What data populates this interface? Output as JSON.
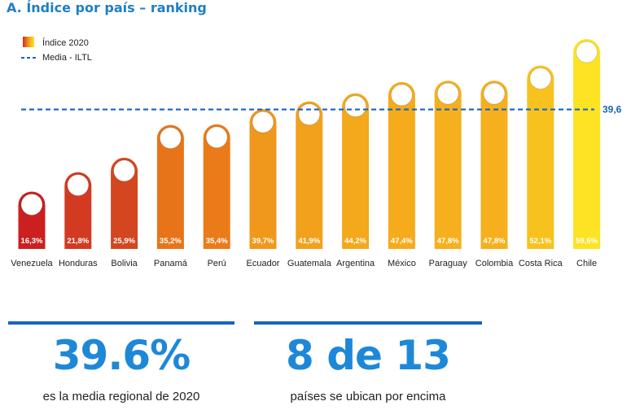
{
  "title": "A. Índice por país – ranking",
  "chart_data": {
    "type": "bar",
    "title": "A. Índice por país – ranking",
    "categories": [
      "Venezuela",
      "Honduras",
      "Bolivia",
      "Panamá",
      "Perú",
      "Ecuador",
      "Guatemala",
      "Argentina",
      "México",
      "Paraguay",
      "Colombia",
      "Costa Rica",
      "Chile"
    ],
    "series": [
      {
        "name": "Índice 2020",
        "values": [
          16.3,
          21.8,
          25.9,
          35.2,
          35.4,
          39.7,
          41.9,
          44.2,
          47.4,
          47.8,
          47.8,
          52.1,
          59.6
        ]
      }
    ],
    "value_labels": [
      "16,3%",
      "21,8%",
      "25,9%",
      "35,2%",
      "35,4%",
      "39,7%",
      "41,9%",
      "44,2%",
      "47,4%",
      "47,8%",
      "47,8%",
      "52,1%",
      "59,6%"
    ],
    "bar_colors": [
      "#cc1f1f",
      "#d23a22",
      "#d4461f",
      "#e8741a",
      "#ea7b18",
      "#f0981c",
      "#f2a11c",
      "#f4a81c",
      "#f5ab1c",
      "#f6b01e",
      "#f6b01e",
      "#f8c21e",
      "#fde324"
    ],
    "reference_line": {
      "name": "Media - ILTL",
      "value": 39.6,
      "label": "39,6",
      "color": "#1565c0"
    },
    "legend": {
      "position": "top-left",
      "items": [
        "Índice 2020",
        "Media - ILTL"
      ]
    },
    "grid": false,
    "ylim": [
      0,
      62
    ],
    "xlabel": "",
    "ylabel": ""
  },
  "stats": [
    {
      "value": "39.6%",
      "caption": "es la media regional de 2020"
    },
    {
      "value": "8 de 13",
      "caption": "países se ubican por encima"
    }
  ]
}
